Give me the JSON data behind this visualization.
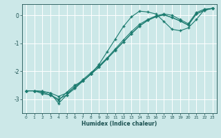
{
  "xlabel": "Humidex (Indice chaleur)",
  "bg_color": "#cce8e8",
  "grid_color": "#ffffff",
  "line_color": "#1a7a6e",
  "xlim": [
    -0.5,
    23.5
  ],
  "ylim": [
    -3.5,
    0.4
  ],
  "yticks": [
    0,
    -1,
    -2,
    -3
  ],
  "xticks": [
    0,
    1,
    2,
    3,
    4,
    5,
    6,
    7,
    8,
    9,
    10,
    11,
    12,
    13,
    14,
    15,
    16,
    17,
    18,
    19,
    20,
    21,
    22,
    23
  ],
  "line1_x": [
    0,
    1,
    2,
    3,
    4,
    5,
    6,
    7,
    8,
    9,
    10,
    11,
    12,
    13,
    14,
    15,
    16,
    17,
    18,
    19,
    20,
    21,
    22,
    23
  ],
  "line1_y": [
    -2.7,
    -2.7,
    -2.8,
    -2.85,
    -3.05,
    -2.75,
    -2.5,
    -2.35,
    -2.1,
    -1.75,
    -1.3,
    -0.85,
    -0.4,
    -0.05,
    0.15,
    0.12,
    0.05,
    -0.22,
    -0.5,
    -0.55,
    -0.45,
    -0.15,
    0.2,
    0.25
  ],
  "line2_x": [
    0,
    1,
    2,
    3,
    4,
    5,
    6,
    7,
    8,
    9,
    10,
    11,
    12,
    13,
    14,
    15,
    16,
    17,
    18,
    19,
    20,
    21,
    22,
    23
  ],
  "line2_y": [
    -2.7,
    -2.7,
    -2.75,
    -2.85,
    -3.0,
    -2.85,
    -2.62,
    -2.35,
    -2.1,
    -1.85,
    -1.55,
    -1.25,
    -0.95,
    -0.65,
    -0.38,
    -0.18,
    -0.05,
    0.02,
    -0.08,
    -0.2,
    -0.35,
    0.05,
    0.18,
    0.25
  ],
  "line3_x": [
    0,
    1,
    2,
    3,
    4,
    5,
    6,
    7,
    8,
    9,
    10,
    11,
    12,
    13,
    14,
    15,
    16,
    17,
    18,
    19,
    20,
    21,
    22,
    23
  ],
  "line3_y": [
    -2.7,
    -2.7,
    -2.72,
    -2.78,
    -2.9,
    -2.78,
    -2.58,
    -2.35,
    -2.1,
    -1.85,
    -1.55,
    -1.25,
    -0.95,
    -0.65,
    -0.38,
    -0.18,
    -0.05,
    0.02,
    -0.08,
    -0.2,
    -0.35,
    0.05,
    0.18,
    0.25
  ],
  "line4_x": [
    0,
    1,
    2,
    3,
    4,
    5,
    6,
    7,
    8,
    9,
    10,
    11,
    12,
    13,
    14,
    15,
    16,
    17,
    18,
    19,
    20,
    21,
    22,
    23
  ],
  "line4_y": [
    -2.7,
    -2.7,
    -2.72,
    -2.78,
    -3.15,
    -2.85,
    -2.55,
    -2.3,
    -2.05,
    -1.8,
    -1.52,
    -1.2,
    -0.88,
    -0.58,
    -0.32,
    -0.15,
    -0.02,
    0.05,
    0.0,
    -0.15,
    -0.3,
    0.1,
    0.22,
    0.25
  ]
}
